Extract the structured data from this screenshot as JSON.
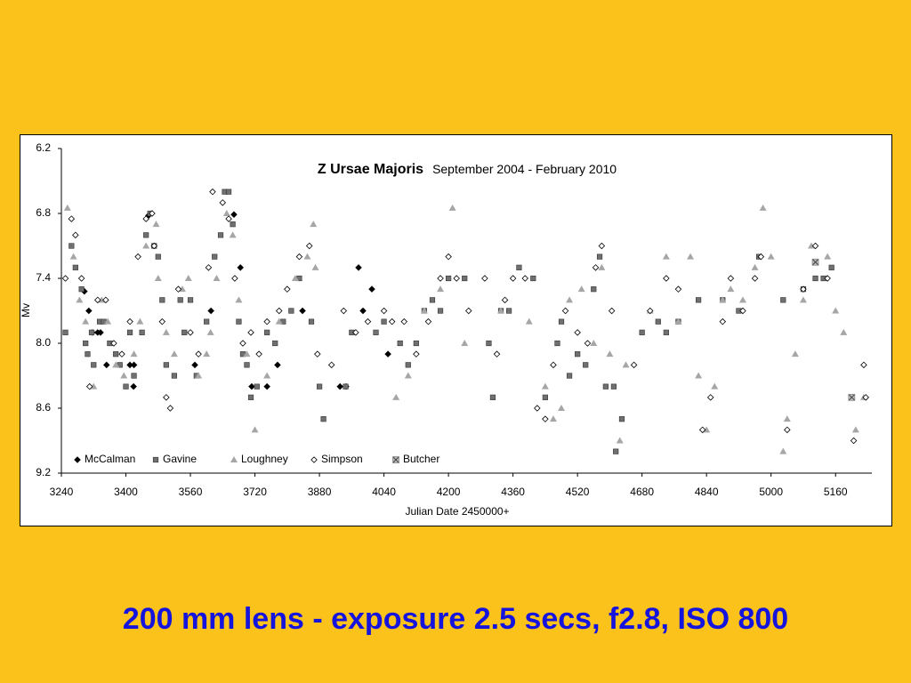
{
  "chart_data": {
    "type": "scatter",
    "title": "Z Ursae Majoris",
    "subtitle": "September 2004 - February 2010",
    "x_label": "Julian Date 2450000+",
    "y_label": "Mv",
    "xlim": [
      3240,
      5250
    ],
    "ylim": [
      6.2,
      9.2
    ],
    "y_inverted": true,
    "xticks": [
      3240,
      3400,
      3560,
      3720,
      3880,
      4040,
      4200,
      4360,
      4520,
      4680,
      4840,
      5000,
      5160
    ],
    "yticks": [
      6.2,
      6.8,
      7.4,
      {
        "value": 8,
        "label": "8.0"
      },
      8.6,
      9.2
    ],
    "legend": "bottom-left",
    "series": [
      {
        "name": "McCalman",
        "marker": "diamond",
        "color": "#000000",
        "x": [
          3297,
          3308,
          3317,
          3330,
          3337,
          3352,
          3410,
          3419,
          3420,
          3456,
          3571,
          3611,
          3668,
          3684,
          3712,
          3750,
          3776,
          3838,
          3931,
          3946,
          3977,
          3988,
          4010,
          4050
        ],
        "values": [
          7.52,
          7.7,
          7.9,
          7.9,
          7.9,
          8.2,
          8.2,
          8.4,
          8.2,
          6.82,
          8.2,
          7.7,
          6.81,
          7.3,
          8.4,
          8.4,
          8.2,
          7.7,
          8.4,
          8.4,
          7.3,
          7.7,
          7.5,
          8.1
        ]
      },
      {
        "name": "Gavine",
        "marker": "square",
        "color": "#707070",
        "x": [
          3250,
          3265,
          3275,
          3290,
          3300,
          3305,
          3315,
          3320,
          3335,
          3345,
          3360,
          3375,
          3385,
          3400,
          3410,
          3420,
          3440,
          3450,
          3460,
          3470,
          3480,
          3490,
          3500,
          3520,
          3535,
          3545,
          3560,
          3575,
          3600,
          3620,
          3635,
          3645,
          3655,
          3665,
          3680,
          3690,
          3700,
          3710,
          3725,
          3750,
          3770,
          3790,
          3810,
          3830,
          3860,
          3880,
          3890,
          3945,
          3960,
          4020,
          4040,
          4080,
          4100,
          4120,
          4140,
          4160,
          4180,
          4200,
          4240,
          4300,
          4310,
          4330,
          4350,
          4375,
          4410,
          4440,
          4470,
          4480,
          4500,
          4520,
          4540,
          4560,
          4575,
          4590,
          4610,
          4615,
          4630,
          4680,
          4720,
          4740,
          4770,
          4820,
          4880,
          4920,
          4970,
          5030,
          5080,
          5110,
          5130,
          5150
        ],
        "values": [
          7.9,
          7.1,
          7.3,
          7.5,
          8.0,
          8.1,
          7.9,
          8.2,
          7.8,
          7.8,
          8.0,
          8.1,
          8.2,
          8.4,
          7.9,
          8.3,
          7.9,
          7.0,
          6.8,
          7.1,
          7.2,
          7.6,
          8.2,
          8.3,
          7.6,
          7.9,
          7.6,
          8.3,
          7.8,
          7.2,
          7.0,
          6.6,
          6.6,
          6.9,
          7.8,
          8.1,
          8.2,
          8.5,
          8.4,
          7.9,
          8.0,
          7.8,
          7.7,
          7.4,
          7.8,
          8.4,
          8.7,
          8.4,
          7.9,
          7.9,
          7.8,
          8.0,
          8.2,
          8.0,
          7.7,
          7.6,
          7.7,
          7.4,
          7.4,
          8.0,
          8.5,
          7.7,
          7.7,
          7.3,
          7.4,
          8.5,
          8.0,
          7.8,
          8.3,
          8.1,
          8.2,
          7.5,
          7.2,
          8.4,
          8.4,
          9.0,
          8.7,
          7.9,
          7.8,
          7.9,
          7.8,
          7.6,
          7.6,
          7.7,
          7.2,
          7.6,
          7.5,
          7.4,
          7.4,
          7.3
        ]
      },
      {
        "name": "Loughney",
        "marker": "triangle",
        "color": "#a6a6a6",
        "x": [
          3255,
          3270,
          3285,
          3300,
          3320,
          3340,
          3355,
          3375,
          3395,
          3420,
          3435,
          3450,
          3475,
          3480,
          3500,
          3520,
          3540,
          3555,
          3580,
          3600,
          3610,
          3625,
          3650,
          3665,
          3680,
          3700,
          3720,
          3750,
          3780,
          3820,
          3850,
          3865,
          3870,
          4070,
          4100,
          4140,
          4180,
          4210,
          4240,
          4330,
          4400,
          4440,
          4460,
          4480,
          4500,
          4530,
          4560,
          4580,
          4600,
          4625,
          4640,
          4700,
          4740,
          4770,
          4800,
          4820,
          4840,
          4860,
          4880,
          4900,
          4930,
          4960,
          4980,
          5000,
          5030,
          5040,
          5060,
          5080,
          5100,
          5140,
          5160,
          5180,
          5210,
          5230
        ],
        "values": [
          6.75,
          7.2,
          7.6,
          7.8,
          8.4,
          7.6,
          7.8,
          8.2,
          8.3,
          8.1,
          7.8,
          7.1,
          6.9,
          7.4,
          7.9,
          8.1,
          7.5,
          7.4,
          8.3,
          8.1,
          7.9,
          7.4,
          6.8,
          7.0,
          7.6,
          8.1,
          8.8,
          8.3,
          7.8,
          7.4,
          7.2,
          6.9,
          7.3,
          8.5,
          8.3,
          7.7,
          7.5,
          6.75,
          8.0,
          7.7,
          7.8,
          8.4,
          8.7,
          8.6,
          7.6,
          7.5,
          8.0,
          7.3,
          8.1,
          8.9,
          8.2,
          7.7,
          7.2,
          7.8,
          7.2,
          8.3,
          8.8,
          8.4,
          7.6,
          7.5,
          7.6,
          7.3,
          6.75,
          7.2,
          9.0,
          8.7,
          8.1,
          7.6,
          7.1,
          7.2,
          7.7,
          7.9,
          8.8,
          8.5
        ]
      },
      {
        "name": "Simpson",
        "marker": "open-diamond",
        "color": "#000000",
        "x": [
          3250,
          3265,
          3275,
          3290,
          3310,
          3330,
          3350,
          3370,
          3390,
          3410,
          3430,
          3450,
          3465,
          3470,
          3490,
          3500,
          3510,
          3530,
          3560,
          3580,
          3605,
          3615,
          3640,
          3655,
          3670,
          3690,
          3710,
          3730,
          3750,
          3780,
          3800,
          3830,
          3855,
          3875,
          3910,
          3940,
          3970,
          4000,
          4040,
          4060,
          4090,
          4120,
          4150,
          4180,
          4200,
          4220,
          4250,
          4290,
          4320,
          4340,
          4360,
          4390,
          4420,
          4440,
          4460,
          4490,
          4520,
          4545,
          4565,
          4580,
          4605,
          4660,
          4700,
          4740,
          4770,
          4830,
          4850,
          4880,
          4900,
          4930,
          4960,
          4975,
          5040,
          5080,
          5110,
          5140,
          5205,
          5230,
          5235
        ],
        "values": [
          7.4,
          6.85,
          7.0,
          7.4,
          8.4,
          7.6,
          7.6,
          8.0,
          8.1,
          7.8,
          7.2,
          6.85,
          6.8,
          7.1,
          7.8,
          8.5,
          8.6,
          7.5,
          7.9,
          8.1,
          7.3,
          6.6,
          6.7,
          6.85,
          7.4,
          8.0,
          7.9,
          8.1,
          7.8,
          7.7,
          7.5,
          7.2,
          7.1,
          8.1,
          8.2,
          7.7,
          7.9,
          7.8,
          7.7,
          7.8,
          7.8,
          8.1,
          7.8,
          7.4,
          7.2,
          7.4,
          7.7,
          7.4,
          8.1,
          7.6,
          7.4,
          7.4,
          8.6,
          8.7,
          8.2,
          7.7,
          7.9,
          8.0,
          7.3,
          7.1,
          7.7,
          8.2,
          7.7,
          7.4,
          7.5,
          8.8,
          8.5,
          7.8,
          7.4,
          7.7,
          7.4,
          7.2,
          8.8,
          7.5,
          7.1,
          7.4,
          8.9,
          8.2,
          8.5
        ]
      },
      {
        "name": "Butcher",
        "marker": "x-square",
        "color": "#8c8c8c",
        "x": [
          5110,
          5200
        ],
        "values": [
          7.25,
          8.5
        ]
      }
    ]
  },
  "caption": "200 mm lens - exposure 2.5 secs, f2.8, ISO 800"
}
